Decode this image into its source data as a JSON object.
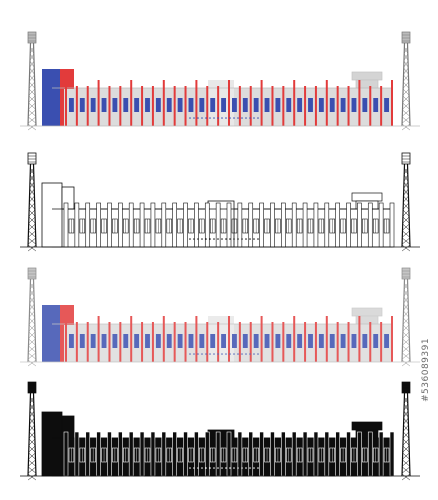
{
  "watermark": {
    "stock_id": "#536089391"
  },
  "colors": {
    "background": "#ffffff",
    "facade_gray": "#dcdcdc",
    "window_blue": "#3a4fb0",
    "accent_red": "#e23b3b",
    "outline_black": "#111111",
    "silhouette_black": "#0d0d0d",
    "tower_gray": "#777777"
  },
  "variants": [
    {
      "style": "color"
    },
    {
      "style": "outline"
    },
    {
      "style": "color"
    },
    {
      "style": "silhouette"
    }
  ]
}
